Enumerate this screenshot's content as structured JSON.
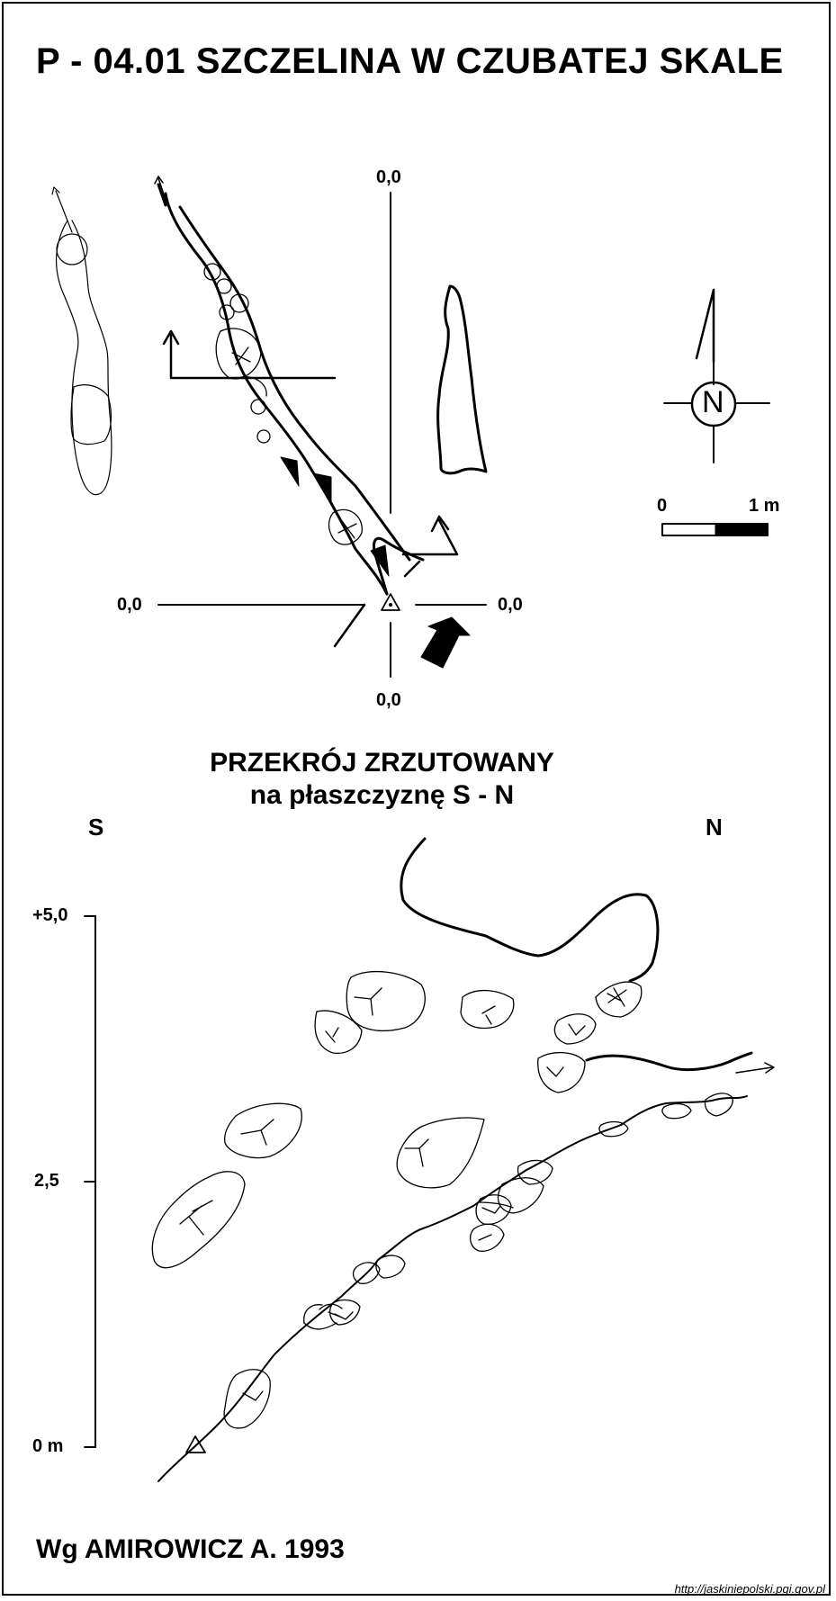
{
  "title": "P - 04.01  SZCZELINA W CZUBATEJ SKALE",
  "plan": {
    "coord_top": "0,0",
    "coord_left": "0,0",
    "coord_right": "0,0",
    "coord_bottom": "0,0",
    "north_label": "N",
    "scale_start": "0",
    "scale_end": "1 m"
  },
  "section": {
    "title_line1": "PRZEKRÓJ ZRZUTOWANY",
    "title_line2": "na płaszczyznę S - N",
    "left_dir": "S",
    "right_dir": "N",
    "elevations": [
      "+5,0",
      "2,5",
      "0 m"
    ]
  },
  "author": "Wg  AMIROWICZ A. 1993",
  "url": "http://jaskiniepolski.pgi.gov.pl"
}
